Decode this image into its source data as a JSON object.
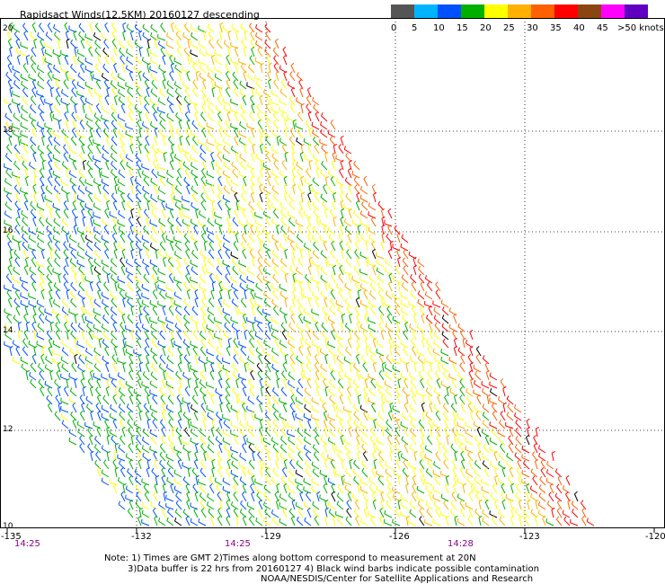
{
  "title": "Rapidsact Winds(12.5KM) 20160127 descending",
  "legend": {
    "colors": [
      "#555555",
      "#00b4ff",
      "#0050ff",
      "#00b000",
      "#ffff00",
      "#ffb000",
      "#ff6000",
      "#ff0000",
      "#8b4513",
      "#ff00ff",
      "#6000c0"
    ],
    "labels": [
      "0",
      "5",
      "10",
      "15",
      "20",
      "25",
      "30",
      "35",
      "40",
      "45",
      ">50 knots"
    ]
  },
  "y_axis": {
    "ticks": [
      "20",
      "18",
      "16",
      "14",
      "12",
      "10"
    ]
  },
  "x_axis": {
    "ticks": [
      "-135",
      "-132",
      "-129",
      "-126",
      "-123",
      "-120"
    ]
  },
  "time_labels": [
    "14:25",
    "14:25",
    "14:28"
  ],
  "notes": {
    "line1": "Note: 1) Times are GMT 2)Times along bottom correspond to measurement at 20N",
    "line2": "3)Data buffer is 22 hrs from 20160127 4) Black wind barbs indicate possible contamination",
    "line3": "NOAA/NESDIS/Center for Satellite Applications and Research"
  }
}
